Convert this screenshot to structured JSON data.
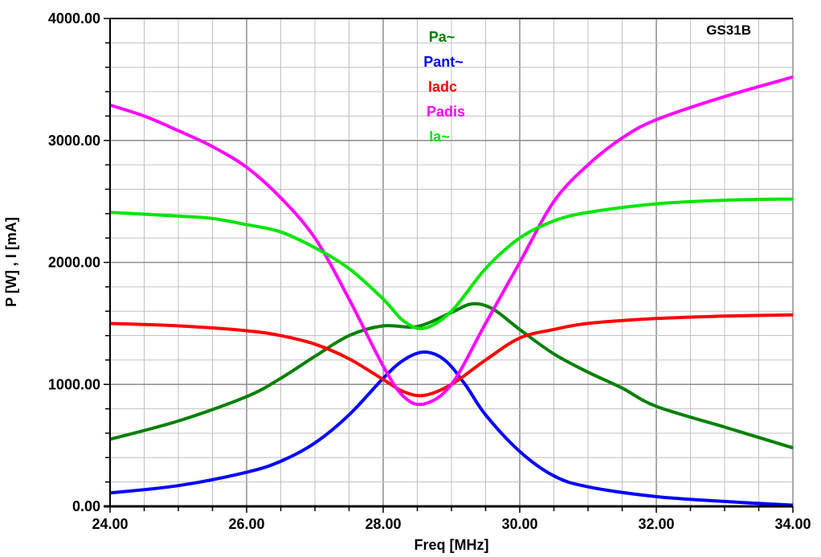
{
  "chart_data": {
    "type": "line",
    "title": "GS31B",
    "xlabel": "Freq [MHz]",
    "ylabel": "P [W] , I [mA]",
    "xlim": [
      24,
      34
    ],
    "ylim": [
      0,
      4000
    ],
    "xticks": [
      "24.00",
      "26.00",
      "28.00",
      "30.00",
      "32.00",
      "34.00"
    ],
    "yticks": [
      "0.00",
      "1000.00",
      "2000.00",
      "3000.00",
      "4000.00"
    ],
    "grid": true,
    "legend_position": "top-center",
    "series": [
      {
        "name": "Pa~",
        "color": "#008000",
        "points": [
          [
            24,
            550
          ],
          [
            25,
            700
          ],
          [
            26,
            900
          ],
          [
            26.5,
            1050
          ],
          [
            27,
            1230
          ],
          [
            27.5,
            1400
          ],
          [
            28,
            1480
          ],
          [
            28.5,
            1475
          ],
          [
            29,
            1590
          ],
          [
            29.3,
            1660
          ],
          [
            29.6,
            1620
          ],
          [
            30,
            1450
          ],
          [
            30.5,
            1250
          ],
          [
            31,
            1100
          ],
          [
            31.5,
            970
          ],
          [
            32,
            820
          ],
          [
            33,
            650
          ],
          [
            34,
            480
          ]
        ]
      },
      {
        "name": "Pant~",
        "color": "#0000ff",
        "points": [
          [
            24,
            110
          ],
          [
            25,
            170
          ],
          [
            26,
            280
          ],
          [
            26.5,
            370
          ],
          [
            27,
            520
          ],
          [
            27.5,
            750
          ],
          [
            28,
            1050
          ],
          [
            28.3,
            1200
          ],
          [
            28.6,
            1265
          ],
          [
            28.9,
            1200
          ],
          [
            29.2,
            1000
          ],
          [
            29.5,
            750
          ],
          [
            30,
            450
          ],
          [
            30.5,
            250
          ],
          [
            31,
            160
          ],
          [
            32,
            80
          ],
          [
            33,
            40
          ],
          [
            34,
            10
          ]
        ]
      },
      {
        "name": "Iadc",
        "color": "#ff0000",
        "points": [
          [
            24,
            1500
          ],
          [
            25,
            1480
          ],
          [
            26,
            1440
          ],
          [
            26.5,
            1400
          ],
          [
            27,
            1330
          ],
          [
            27.5,
            1210
          ],
          [
            28,
            1040
          ],
          [
            28.3,
            940
          ],
          [
            28.6,
            910
          ],
          [
            29,
            1000
          ],
          [
            29.5,
            1200
          ],
          [
            30,
            1380
          ],
          [
            30.5,
            1450
          ],
          [
            31,
            1500
          ],
          [
            32,
            1540
          ],
          [
            33,
            1560
          ],
          [
            34,
            1570
          ]
        ]
      },
      {
        "name": "Padis",
        "color": "#ff00ff",
        "points": [
          [
            24,
            3290
          ],
          [
            24.5,
            3200
          ],
          [
            25,
            3080
          ],
          [
            25.5,
            2950
          ],
          [
            26,
            2780
          ],
          [
            26.5,
            2530
          ],
          [
            27,
            2200
          ],
          [
            27.5,
            1700
          ],
          [
            28,
            1150
          ],
          [
            28.3,
            900
          ],
          [
            28.6,
            840
          ],
          [
            29,
            1000
          ],
          [
            29.5,
            1500
          ],
          [
            30,
            2000
          ],
          [
            30.5,
            2500
          ],
          [
            31,
            2800
          ],
          [
            31.5,
            3020
          ],
          [
            32,
            3170
          ],
          [
            33,
            3360
          ],
          [
            34,
            3520
          ]
        ]
      },
      {
        "name": "Ia~",
        "color": "#00e600",
        "points": [
          [
            24,
            2410
          ],
          [
            25,
            2380
          ],
          [
            25.5,
            2360
          ],
          [
            26,
            2310
          ],
          [
            26.5,
            2250
          ],
          [
            27,
            2120
          ],
          [
            27.5,
            1950
          ],
          [
            28,
            1700
          ],
          [
            28.3,
            1520
          ],
          [
            28.6,
            1460
          ],
          [
            29,
            1600
          ],
          [
            29.5,
            1950
          ],
          [
            30,
            2200
          ],
          [
            30.5,
            2340
          ],
          [
            31,
            2410
          ],
          [
            32,
            2480
          ],
          [
            33,
            2510
          ],
          [
            34,
            2520
          ]
        ]
      }
    ]
  }
}
